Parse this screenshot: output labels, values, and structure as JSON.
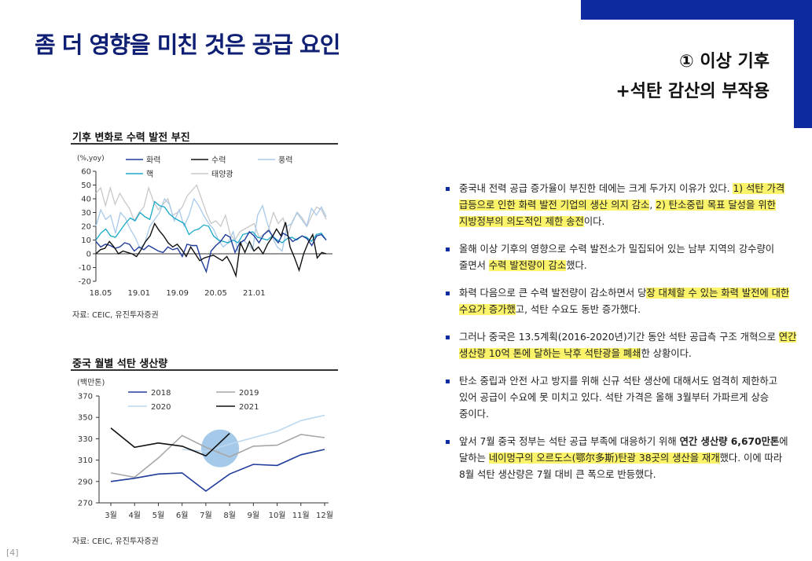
{
  "header": {
    "title": "좀 더 영향을 미친 것은 공급 요인",
    "subtitle_line1": "① 이상 기후",
    "subtitle_line2": "+석탄 감산의 부작용"
  },
  "charts": [
    {
      "title": "기후 변화로 수력 발전 부진",
      "unit": "(%,yoy)",
      "source": "자료: CEIC, 유진투자증권"
    },
    {
      "title": "중국 월별 석탄 생산량",
      "unit": "(백만톤)",
      "source": "자료: CEIC, 유진투자증권"
    }
  ],
  "chart_data": [
    {
      "type": "line",
      "title": "기후 변화로 수력 발전 부진",
      "ylabel": "(%,yoy)",
      "ylim": [
        -20,
        60
      ],
      "yticks": [
        -20,
        -10,
        0,
        10,
        20,
        30,
        40,
        50,
        60
      ],
      "xticks": [
        "18.05",
        "19.01",
        "19.09",
        "20.05",
        "21.01"
      ],
      "legend_placement": "top",
      "series": [
        {
          "name": "화력",
          "color": "#1f3c9a",
          "values": [
            9,
            5,
            7,
            6,
            4,
            5,
            8,
            7,
            2,
            5,
            3,
            6,
            4,
            2,
            1,
            5,
            3,
            4,
            -2,
            7,
            6,
            6,
            -5,
            -13,
            2,
            6,
            9,
            14,
            12,
            1,
            8,
            10,
            16,
            13,
            8,
            14,
            17,
            12,
            8,
            15,
            13,
            9,
            11,
            13,
            11,
            6,
            13,
            14,
            10
          ]
        },
        {
          "name": "수력",
          "color": "#111111",
          "values": [
            0,
            3,
            4,
            9,
            5,
            0,
            2,
            1,
            0,
            -2,
            3,
            9,
            13,
            22,
            17,
            13,
            8,
            5,
            7,
            3,
            -2,
            5,
            0,
            -5,
            -3,
            -2,
            -1,
            -3,
            -5,
            -2,
            -8,
            -16,
            8,
            1,
            9,
            2,
            5,
            0,
            7,
            12,
            18,
            13,
            23,
            5,
            -3,
            -12,
            0,
            8,
            14,
            -3,
            1,
            0
          ]
        },
        {
          "name": "풍력",
          "color": "#a8c9ea",
          "values": [
            20,
            32,
            25,
            28,
            15,
            30,
            26,
            18,
            12,
            4,
            8,
            20,
            25,
            30,
            40,
            36,
            24,
            32,
            20,
            28,
            40,
            35,
            28,
            22,
            18,
            10,
            5,
            8,
            16,
            2,
            10,
            7,
            3,
            28,
            35,
            22,
            12,
            5,
            2,
            20,
            22,
            30,
            25,
            20,
            33,
            28,
            34,
            27
          ]
        },
        {
          "name": "핵",
          "color": "#1aa9c9",
          "values": [
            10,
            15,
            18,
            13,
            12,
            17,
            22,
            26,
            24,
            30,
            27,
            25,
            38,
            35,
            34,
            29,
            26,
            24,
            22,
            14,
            17,
            18,
            21,
            20,
            13,
            10,
            9,
            8,
            10,
            8,
            14,
            15,
            16,
            12,
            11,
            10,
            13,
            10,
            8,
            11,
            12,
            10,
            13,
            12,
            9,
            14,
            15,
            10
          ]
        },
        {
          "name": "태양광",
          "color": "#c8c8c8",
          "values": [
            44,
            48,
            35,
            48,
            36,
            44,
            38,
            33,
            24,
            30,
            34,
            48,
            38,
            32,
            36,
            40,
            28,
            30,
            34,
            42,
            46,
            50,
            40,
            30,
            22,
            24,
            20,
            28,
            14,
            10,
            16,
            18,
            20,
            22,
            12,
            14,
            18,
            30,
            22,
            26,
            14,
            24,
            30,
            26,
            20,
            28,
            34,
            32,
            25
          ]
        }
      ]
    },
    {
      "type": "line",
      "title": "중국 월별 석탄 생산량",
      "ylabel": "(백만톤)",
      "ylim": [
        270,
        370
      ],
      "yticks": [
        270,
        290,
        310,
        330,
        350,
        370
      ],
      "categories": [
        "3월",
        "4월",
        "5월",
        "6월",
        "7월",
        "8월",
        "9월",
        "10월",
        "11월",
        "12월"
      ],
      "legend_placement": "top",
      "series": [
        {
          "name": "2018",
          "color": "#1f3c9a",
          "values": [
            290,
            293,
            297,
            298,
            281,
            297,
            306,
            305,
            315,
            320
          ]
        },
        {
          "name": "2019",
          "color": "#a7a7a7",
          "values": [
            298,
            294,
            312,
            333,
            322,
            313,
            323,
            324,
            334,
            331
          ]
        },
        {
          "name": "2020",
          "color": "#bcd8ef",
          "values": [
            null,
            null,
            null,
            320,
            318,
            325,
            331,
            337,
            347,
            352
          ]
        },
        {
          "name": "2021",
          "color": "#111111",
          "values": [
            340,
            322,
            326,
            323,
            314,
            335,
            null,
            null,
            null,
            null
          ]
        }
      ]
    }
  ],
  "bullets": [
    {
      "segments": [
        {
          "text": "중국내 전력 공급 증가율이 부진한 데에는 크게 두가지 이유가 있다. ",
          "style": ""
        },
        {
          "text": "1) 석탄 가격 급등으로 인한 화력 발전 기업의 생산 의지 감소",
          "style": "mark"
        },
        {
          "text": ", ",
          "style": ""
        },
        {
          "text": "2) 탄소중립 목표 달성을 위한 지방정부의 의도적인 제한 송전",
          "style": "mark"
        },
        {
          "text": "이다.",
          "style": ""
        }
      ]
    },
    {
      "segments": [
        {
          "text": "올해 이상 기후의 영향으로 수력 발전소가 밀집되어 있는 남부 지역의 강수량이 줄면서 ",
          "style": ""
        },
        {
          "text": "수력 발전량이 감소",
          "style": "mark"
        },
        {
          "text": "했다.",
          "style": ""
        }
      ]
    },
    {
      "segments": [
        {
          "text": "화력 다음으로 큰 수력 발전량이 감소하면서 당",
          "style": ""
        },
        {
          "text": "장 대체할 수 있는 화력 발전에 대한 수요가 증가했",
          "style": "mark"
        },
        {
          "text": "고, 석탄 수요도 동반 증가했다.",
          "style": ""
        }
      ]
    },
    {
      "segments": [
        {
          "text": "그러나 중국은 13.5계획(2016-2020년)기간 동안 석탄 공급측 구조 개혁으로 ",
          "style": ""
        },
        {
          "text": "연간 생산량 10억 톤에 달하는 낙후 석탄광을 폐쇄",
          "style": "mark"
        },
        {
          "text": "한 상황이다.",
          "style": ""
        }
      ]
    },
    {
      "segments": [
        {
          "text": "탄소 중립과 안전 사고 방지를 위해 신규 석탄 생산에 대해서도 엄격히 제한하고 있어 공급이 수요에 못 미치고 있다. 석탄 가격은 올해 3월부터 가파르게 상승 중이다.",
          "style": ""
        }
      ]
    },
    {
      "segments": [
        {
          "text": "앞서 7월 중국 정부는 석탄 공급 부족에 대응하기 위해 ",
          "style": ""
        },
        {
          "text": "연간 생산량 6,670만톤",
          "style": "b"
        },
        {
          "text": "에 달하는 ",
          "style": ""
        },
        {
          "text": "네이멍구의 오르도스(鄂尔多斯)탄광 38곳의 생산을 재개",
          "style": "mark"
        },
        {
          "text": "했다. 이에 따라 8월 석탄 생산량은 7월 대비 큰 폭으로 반등했다.",
          "style": ""
        }
      ]
    }
  ],
  "footer": {
    "page_number": "[4]"
  }
}
